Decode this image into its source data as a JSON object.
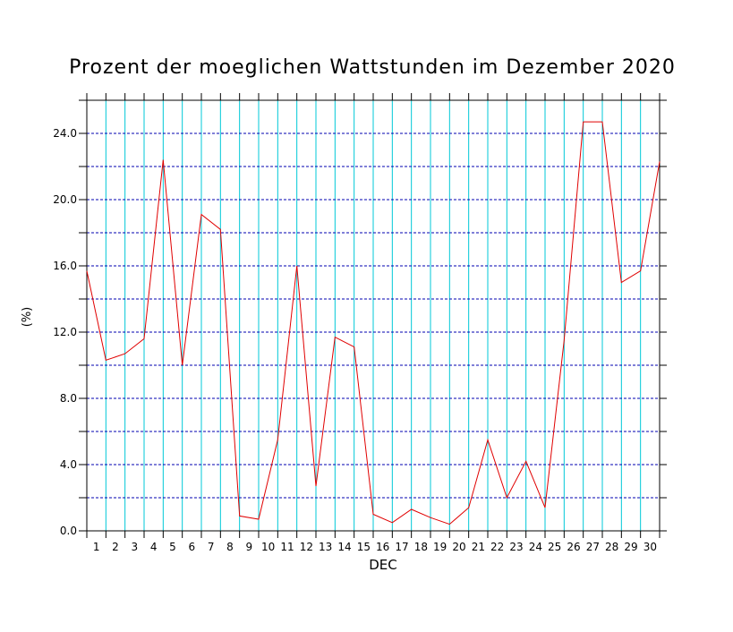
{
  "chart_data": {
    "type": "line",
    "title": "Prozent der moeglichen Wattstunden im Dezember 2020",
    "xlabel": "DEC",
    "ylabel": "(%)",
    "xlim": [
      1,
      31
    ],
    "ylim": [
      0,
      26
    ],
    "x_ticks": [
      "1",
      "2",
      "3",
      "4",
      "5",
      "6",
      "7",
      "8",
      "9",
      "10",
      "11",
      "12",
      "13",
      "14",
      "15",
      "16",
      "17",
      "18",
      "19",
      "20",
      "21",
      "22",
      "23",
      "24",
      "25",
      "26",
      "27",
      "28",
      "29",
      "30"
    ],
    "y_ticks": [
      "0.0",
      "4.0",
      "8.0",
      "12.0",
      "16.0",
      "20.0",
      "24.0"
    ],
    "grid": true,
    "colors": {
      "line": "#e00000",
      "vgrid": "#00c8d8",
      "hgrid": "#0000b0",
      "axis": "#000000"
    },
    "x": [
      1,
      2,
      3,
      4,
      5,
      6,
      7,
      8,
      9,
      10,
      11,
      12,
      13,
      14,
      15,
      16,
      17,
      18,
      19,
      20,
      21,
      22,
      23,
      24,
      25,
      26,
      27,
      28,
      29,
      30,
      31
    ],
    "values": [
      15.7,
      10.3,
      10.7,
      11.6,
      22.4,
      10.0,
      19.1,
      18.2,
      0.9,
      0.7,
      5.5,
      16.0,
      2.7,
      11.7,
      11.1,
      1.0,
      0.5,
      1.3,
      0.8,
      0.4,
      1.4,
      5.5,
      2.0,
      4.2,
      1.4,
      11.5,
      24.7,
      24.7,
      15.0,
      15.7,
      22.3
    ]
  }
}
